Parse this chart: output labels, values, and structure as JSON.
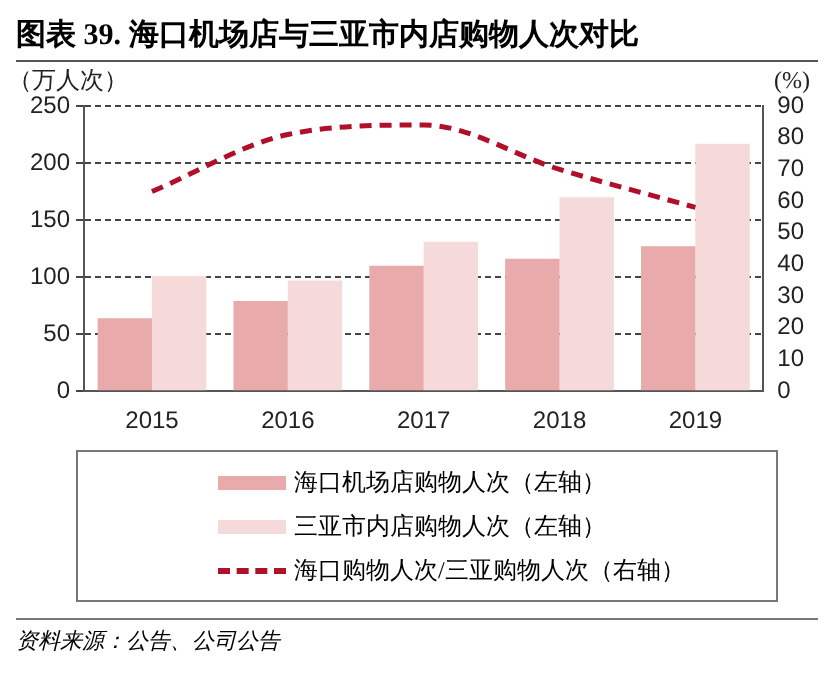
{
  "chart_data": {
    "type": "bar",
    "title": "图表 39. 海口机场店与三亚市内店购物人次对比",
    "ylabel": "（万人次）",
    "y2label": "(%)",
    "categories": [
      "2015",
      "2016",
      "2017",
      "2018",
      "2019"
    ],
    "series": [
      {
        "name": "海口机场店购物人次（左轴）",
        "color": "#e8aaaa",
        "values": [
          64,
          79,
          110,
          116,
          127
        ]
      },
      {
        "name": "三亚市内店购物人次（左轴）",
        "color": "#f6d9d9",
        "values": [
          101,
          97,
          131,
          170,
          217
        ]
      },
      {
        "name": "海口购物人次/三亚购物人次（右轴）",
        "type": "line",
        "axis": "y2",
        "color": "#b0102a",
        "line_style": "dashed",
        "marker": "none",
        "values": [
          63,
          81,
          84,
          70,
          58
        ]
      }
    ],
    "ylim": [
      0,
      250
    ],
    "yticks": [
      0,
      50,
      100,
      150,
      200,
      250
    ],
    "y2lim": [
      0,
      90
    ],
    "y2ticks": [
      0,
      10,
      20,
      30,
      40,
      50,
      60,
      70,
      80,
      90
    ],
    "grid": "y",
    "legend": "bottom",
    "annotations": [
      "资料来源：公告、公司公告"
    ]
  }
}
